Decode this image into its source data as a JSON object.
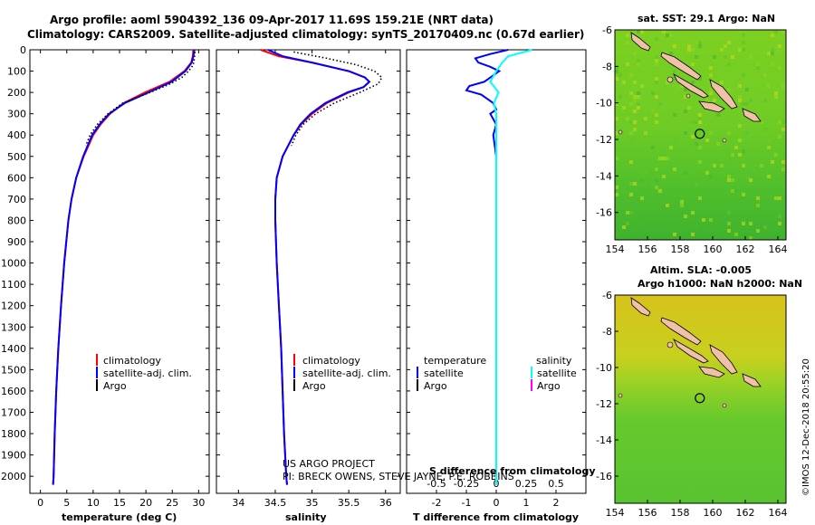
{
  "header": {
    "line1": "Argo profile: aoml 5904392_136 09-Apr-2017 11.69S 159.21E (NRT data)",
    "line2": "Climatology: CARS2009. Satellite-adjusted climatology: synTS_20170409.nc (0.67d earlier)"
  },
  "colors": {
    "climatology": "#ff0000",
    "satellite": "#0000ff",
    "argo": "#000000",
    "sal_satellite": "#00ffff",
    "sal_argo": "#ff00ff"
  },
  "credits": {
    "project": "US ARGO PROJECT",
    "pi": "PI: BRECK OWENS, STEVE JAYNE, P.E. ROBBINS",
    "stamp": "©IMOS 12-Dec-2018 20:55:20"
  },
  "chart_data": [
    {
      "type": "line",
      "id": "temperature",
      "xlabel": "temperature (deg C)",
      "ylabel": "",
      "xlim": [
        -2,
        32
      ],
      "ylim": [
        2080,
        0
      ],
      "yreversed": true,
      "xticks": [
        0,
        5,
        10,
        15,
        20,
        25,
        30
      ],
      "xtick_labels": [
        "0",
        "5",
        "10",
        "15",
        "20",
        "25",
        "30"
      ],
      "yticks": [
        0,
        100,
        200,
        300,
        400,
        500,
        600,
        700,
        800,
        900,
        1000,
        1100,
        1200,
        1300,
        1400,
        1500,
        1600,
        1700,
        1800,
        1900,
        2000
      ],
      "ytick_labels": [
        "0",
        "100",
        "200",
        "300",
        "400",
        "500",
        "600",
        "700",
        "800",
        "900",
        "1000",
        "1100",
        "1200",
        "1300",
        "1400",
        "1500",
        "1600",
        "1700",
        "1800",
        "1900",
        "2000"
      ],
      "legend": [
        "climatology",
        "satellite-adj. clim.",
        "Argo"
      ],
      "series": [
        {
          "name": "climatology",
          "depth": [
            0,
            30,
            60,
            100,
            150,
            200,
            250,
            300,
            350,
            400,
            500,
            600,
            700,
            800,
            900,
            1000,
            1200,
            1400,
            1600,
            1800,
            2000,
            2040
          ],
          "values": [
            29.0,
            28.9,
            28.6,
            27.3,
            24.5,
            19.8,
            15.8,
            13.2,
            11.4,
            10.0,
            8.2,
            6.8,
            5.9,
            5.3,
            4.9,
            4.5,
            3.9,
            3.4,
            3.0,
            2.7,
            2.5,
            2.4
          ]
        },
        {
          "name": "satellite-adj. clim.",
          "depth": [
            0,
            30,
            60,
            100,
            150,
            200,
            250,
            300,
            350,
            400,
            500,
            600,
            700,
            800,
            900,
            1000,
            1200,
            1400,
            1600,
            1800,
            2000,
            2040
          ],
          "values": [
            29.2,
            29.0,
            28.7,
            27.5,
            24.9,
            20.5,
            16.0,
            13.0,
            11.2,
            9.8,
            8.1,
            6.8,
            5.9,
            5.3,
            4.9,
            4.5,
            3.9,
            3.4,
            3.0,
            2.7,
            2.5,
            2.4
          ]
        },
        {
          "name": "Argo",
          "depth": [
            10,
            40,
            70,
            100,
            130,
            160,
            200,
            250,
            300,
            350,
            400,
            450
          ],
          "values": [
            29.3,
            29.2,
            29.0,
            28.1,
            26.8,
            24.6,
            20.8,
            15.6,
            12.8,
            10.8,
            9.4,
            8.6
          ]
        }
      ]
    },
    {
      "type": "line",
      "id": "salinity",
      "xlabel": "salinity",
      "ylabel": "",
      "xlim": [
        33.7,
        36.2
      ],
      "ylim": [
        2080,
        0
      ],
      "yreversed": true,
      "xticks": [
        34,
        34.5,
        35,
        35.5,
        36
      ],
      "xtick_labels": [
        "34",
        "34.5",
        "35",
        "35.5",
        "36"
      ],
      "legend": [
        "climatology",
        "satellite-adj. clim.",
        "Argo"
      ],
      "series": [
        {
          "name": "climatology",
          "depth": [
            0,
            30,
            60,
            100,
            130,
            150,
            175,
            200,
            250,
            300,
            350,
            400,
            500,
            600,
            700,
            800,
            1000,
            1200,
            1400,
            1600,
            1800,
            2000,
            2040
          ],
          "values": [
            34.3,
            34.55,
            35.0,
            35.5,
            35.72,
            35.78,
            35.7,
            35.5,
            35.2,
            35.0,
            34.85,
            34.75,
            34.6,
            34.52,
            34.5,
            34.5,
            34.52,
            34.55,
            34.58,
            34.6,
            34.62,
            34.65,
            34.66
          ]
        },
        {
          "name": "satellite-adj. clim.",
          "depth": [
            0,
            30,
            60,
            100,
            130,
            150,
            175,
            200,
            250,
            300,
            350,
            400,
            500,
            600,
            700,
            800,
            1000,
            1200,
            1400,
            1600,
            1800,
            2000,
            2040
          ],
          "values": [
            34.4,
            34.6,
            35.0,
            35.5,
            35.72,
            35.78,
            35.7,
            35.48,
            35.18,
            34.98,
            34.84,
            34.75,
            34.6,
            34.52,
            34.5,
            34.5,
            34.52,
            34.55,
            34.58,
            34.6,
            34.62,
            34.65,
            34.66
          ]
        },
        {
          "name": "Argo",
          "depth": [
            10,
            40,
            70,
            100,
            130,
            160,
            200,
            250,
            300,
            350,
            400,
            450
          ],
          "values": [
            34.75,
            35.2,
            35.6,
            35.85,
            35.95,
            35.9,
            35.65,
            35.3,
            35.05,
            34.88,
            34.78,
            34.72
          ]
        }
      ]
    },
    {
      "type": "line",
      "id": "difference",
      "xlabel": "T difference from climatology",
      "title_inner": "S difference from climatology",
      "xlim": [
        -3,
        3
      ],
      "ylim": [
        2080,
        0
      ],
      "yreversed": true,
      "xticks": [
        -2,
        -1,
        0,
        1,
        2
      ],
      "xtick_labels": [
        "-2",
        "-1",
        "0",
        "1",
        "2"
      ],
      "sticks": [
        -0.5,
        -0.25,
        0,
        0.25,
        0.5
      ],
      "stick_labels": [
        "-0.5",
        "-0.25",
        "0",
        "0.25",
        "0.5"
      ],
      "legend_left": {
        "title": "temperature",
        "items": [
          "satellite",
          "Argo"
        ]
      },
      "legend_right": {
        "title": "salinity",
        "items": [
          "satellite",
          "Argo"
        ]
      },
      "series": [
        {
          "name": "temperature satellite",
          "depth": [
            0,
            20,
            40,
            60,
            80,
            100,
            120,
            150,
            170,
            190,
            210,
            230,
            250,
            280,
            300,
            350,
            400,
            500,
            600,
            800,
            1000,
            1400,
            2040
          ],
          "values": [
            0.4,
            -0.2,
            -0.7,
            -0.6,
            -0.2,
            0.1,
            -0.1,
            -0.4,
            -0.9,
            -1.0,
            -0.5,
            -0.3,
            -0.1,
            0.0,
            -0.2,
            0.0,
            -0.1,
            0.0,
            0.0,
            0.0,
            0.0,
            0.0,
            0.0
          ]
        },
        {
          "name": "salinity satellite",
          "depth": [
            0,
            30,
            60,
            100,
            150,
            200,
            250,
            300,
            400,
            500,
            700,
            1000,
            1500,
            2040
          ],
          "values": [
            0.3,
            0.1,
            0.05,
            0.0,
            -0.05,
            0.02,
            -0.02,
            0.0,
            0.0,
            0.0,
            0.0,
            0.0,
            0.0,
            0.0
          ]
        }
      ]
    },
    {
      "type": "heatmap",
      "id": "sst-map",
      "title": "sat. SST: 29.1 Argo: NaN",
      "xlim": [
        154,
        164.5
      ],
      "ylim": [
        -17.5,
        -6
      ],
      "xticks": [
        154,
        156,
        158,
        160,
        162,
        164
      ],
      "xtick_labels": [
        "154",
        "156",
        "158",
        "160",
        "162",
        "164"
      ],
      "yticks": [
        -6,
        -8,
        -10,
        -12,
        -14,
        -16
      ],
      "ytick_labels": [
        "-6",
        "-8",
        "-10",
        "-12",
        "-14",
        "-16"
      ],
      "marker": {
        "lon": 159.21,
        "lat": -11.69
      }
    },
    {
      "type": "heatmap",
      "id": "sla-map",
      "title": "Altim. SLA: -0.005",
      "subtitle": "Argo h1000: NaN h2000: NaN",
      "xlim": [
        154,
        164.5
      ],
      "ylim": [
        -17.5,
        -6
      ],
      "xticks": [
        154,
        156,
        158,
        160,
        162,
        164
      ],
      "xtick_labels": [
        "154",
        "156",
        "158",
        "160",
        "162",
        "164"
      ],
      "yticks": [
        -6,
        -8,
        -10,
        -12,
        -14,
        -16
      ],
      "ytick_labels": [
        "-6",
        "-8",
        "-10",
        "-12",
        "-14",
        "-16"
      ],
      "marker": {
        "lon": 159.21,
        "lat": -11.69
      }
    }
  ]
}
